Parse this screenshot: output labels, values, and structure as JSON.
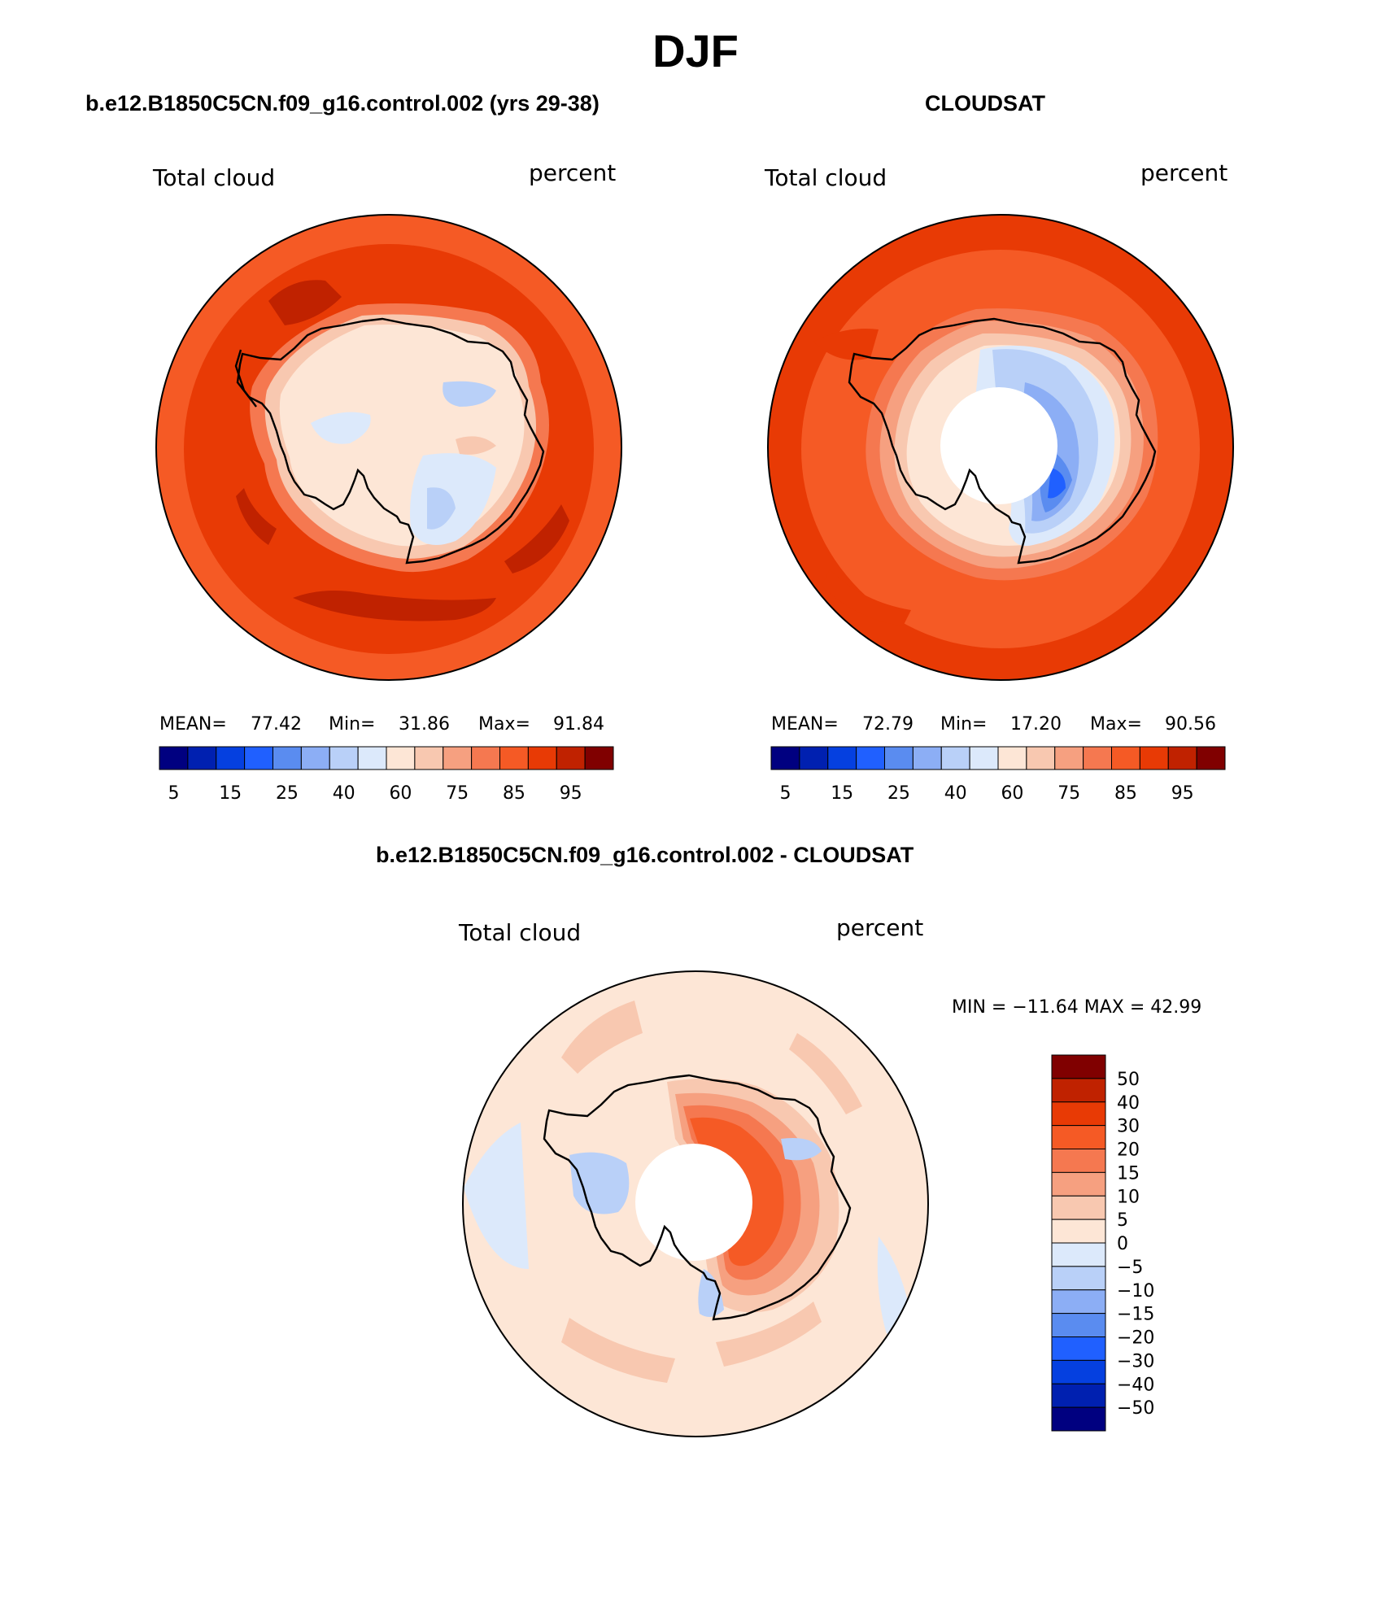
{
  "page_title": "DJF",
  "panels": [
    {
      "case_title": "b.e12.B1850C5CN.f09_g16.control.002 (yrs 29-38)",
      "variable": "Total cloud",
      "units": "percent",
      "stats": {
        "mean_label": "MEAN=",
        "mean": "77.42",
        "min_label": "Min=",
        "min": "31.86",
        "max_label": "Max=",
        "max": "91.84"
      },
      "colorbar_ticks": [
        "5",
        "15",
        "25",
        "40",
        "60",
        "75",
        "85",
        "95"
      ]
    },
    {
      "case_title": "CLOUDSAT",
      "variable": "Total cloud",
      "units": "percent",
      "stats": {
        "mean_label": "MEAN=",
        "mean": "72.79",
        "min_label": "Min=",
        "min": "17.20",
        "max_label": "Max=",
        "max": "90.56"
      },
      "colorbar_ticks": [
        "5",
        "15",
        "25",
        "40",
        "60",
        "75",
        "85",
        "95"
      ]
    },
    {
      "case_title": "b.e12.B1850C5CN.f09_g16.control.002 - CLOUDSAT",
      "variable": "Total cloud",
      "units": "percent",
      "stats_text": "MIN = −11.64  MAX =   42.99",
      "colorbar_ticks": [
        "50",
        "40",
        "30",
        "20",
        "15",
        "10",
        "5",
        "0",
        "−5",
        "−10",
        "−15",
        "−20",
        "−30",
        "−40",
        "−50"
      ]
    }
  ],
  "colors": {
    "abs_scale": [
      "#000080",
      "#0020b0",
      "#0540e0",
      "#2060ff",
      "#5a8cf0",
      "#8caef5",
      "#b9d0f8",
      "#dce9fb",
      "#fde6d6",
      "#f8c8b0",
      "#f6a080",
      "#f57850",
      "#f55a25",
      "#e83a05",
      "#c02200",
      "#800000"
    ],
    "diff_scale": [
      "#800000",
      "#c02200",
      "#e83a05",
      "#f55a25",
      "#f57850",
      "#f6a080",
      "#f8c8b0",
      "#fde6d6",
      "#dce9fb",
      "#b9d0f8",
      "#8caef5",
      "#5a8cf0",
      "#2060ff",
      "#0540e0",
      "#0020b0",
      "#000080"
    ]
  }
}
